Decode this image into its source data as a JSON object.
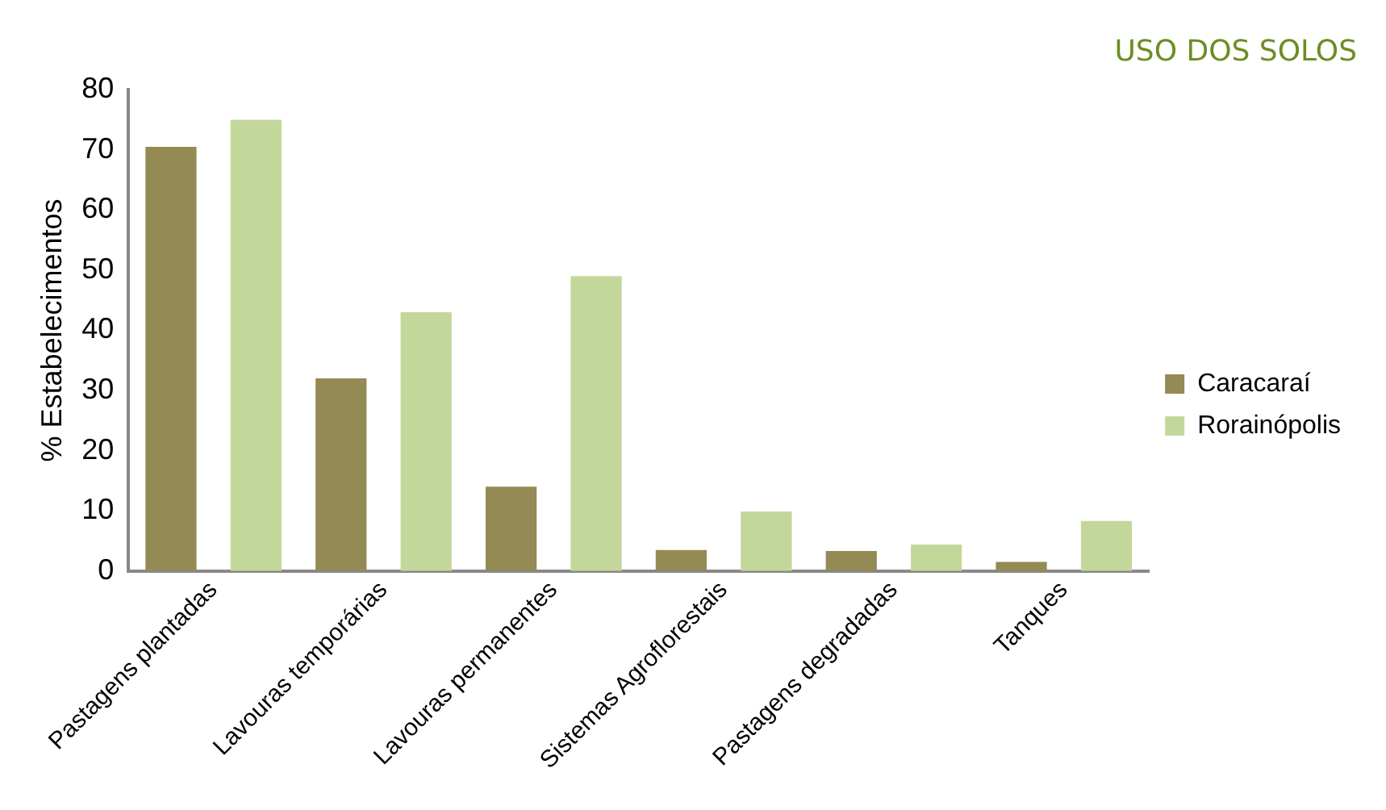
{
  "chart_data": {
    "type": "bar",
    "title": "USO DOS SOLOS",
    "ylabel": "% Estabelecimentos",
    "categories": [
      "Pastagens plantadas",
      "Lavouras temporárias",
      "Lavouras permanentes",
      "Sistemas Agroflorestais",
      "Pastagens degradadas",
      "Tanques"
    ],
    "series": [
      {
        "name": "Caracaraí",
        "color": "#948a54",
        "values": [
          70.5,
          32,
          14,
          3.5,
          3.3,
          1.5
        ]
      },
      {
        "name": "Rorainópolis",
        "color": "#c4d79b",
        "values": [
          75,
          43,
          49,
          9.9,
          4.4,
          8.3
        ]
      }
    ],
    "ylim": [
      0,
      80
    ],
    "yticks": [
      0,
      10,
      20,
      30,
      40,
      50,
      60,
      70,
      80
    ],
    "grid": false,
    "legend": "right"
  }
}
